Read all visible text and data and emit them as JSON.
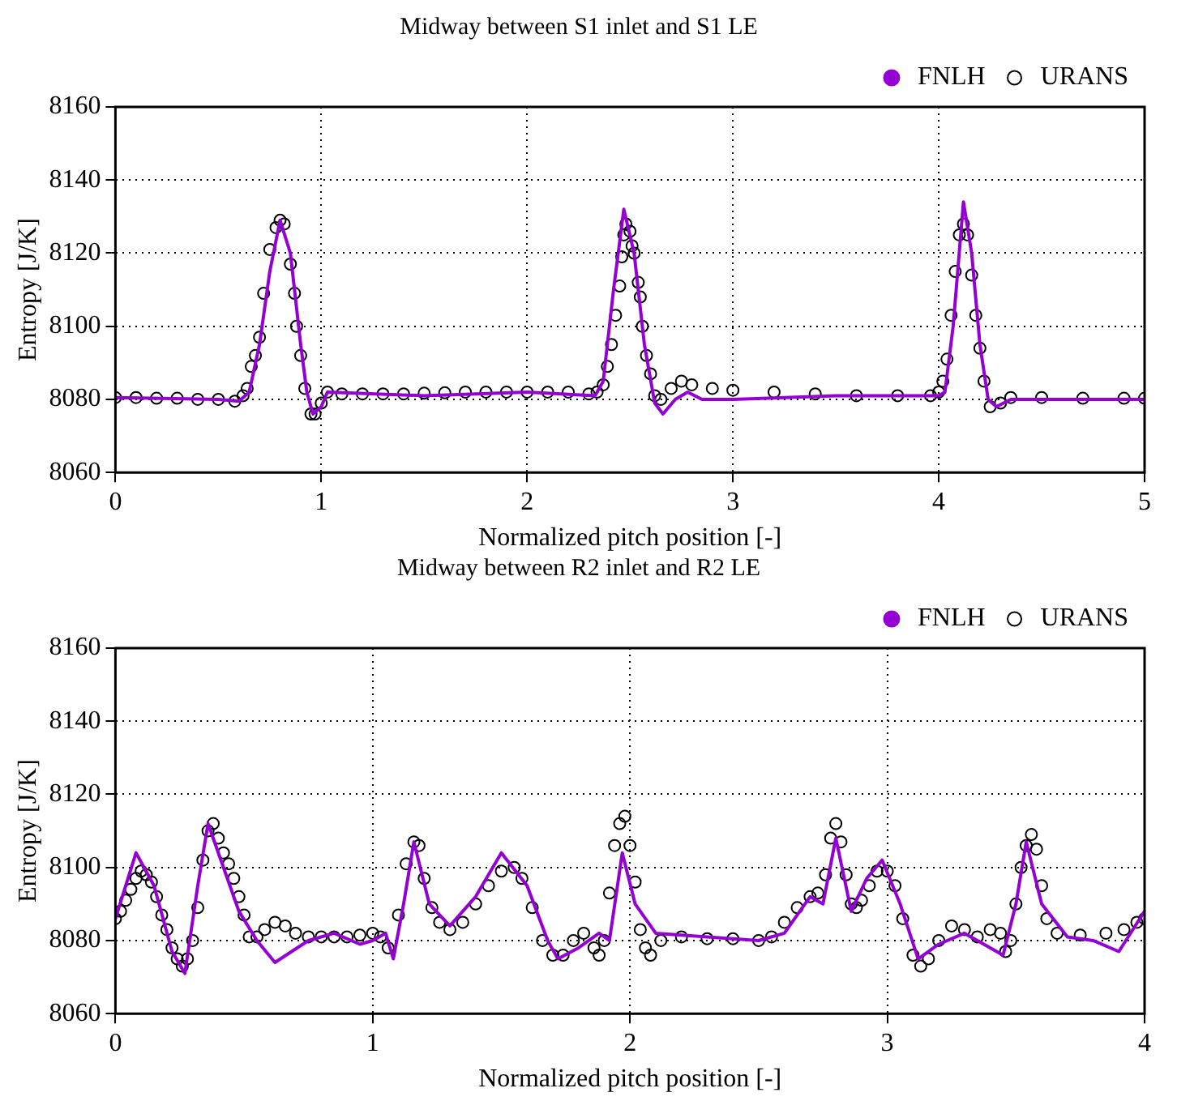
{
  "chart_data": [
    {
      "type": "line",
      "title": "Midway between S1 inlet and S1 LE",
      "xlabel": "Normalized pitch position [-]",
      "ylabel": "Entropy [J/K]",
      "xlim": [
        0,
        5
      ],
      "xticks": [
        0,
        1,
        2,
        3,
        4,
        5
      ],
      "ylim": [
        8060,
        8160
      ],
      "yticks": [
        8060,
        8080,
        8100,
        8120,
        8140,
        8160
      ],
      "grid": true,
      "legend": "top right",
      "series": [
        {
          "name": "FNLH",
          "color": "#9400d3",
          "type": "line",
          "marker": "none",
          "x": [
            0,
            0.5,
            0.6,
            0.65,
            0.7,
            0.75,
            0.8,
            0.85,
            0.9,
            0.93,
            0.96,
            1.0,
            1.03,
            1.5,
            2.0,
            2.33,
            2.37,
            2.42,
            2.47,
            2.52,
            2.57,
            2.62,
            2.66,
            2.72,
            2.78,
            2.85,
            3.0,
            3.5,
            4.0,
            4.03,
            4.07,
            4.12,
            4.16,
            4.2,
            4.24,
            4.28,
            4.35,
            5.0
          ],
          "values": [
            8080.5,
            8080,
            8079.5,
            8082,
            8095,
            8115,
            8129,
            8120,
            8095,
            8082,
            8076,
            8078,
            8082,
            8081,
            8082,
            8081,
            8085,
            8110,
            8132,
            8120,
            8095,
            8079,
            8076,
            8080,
            8082,
            8080,
            8080,
            8081,
            8081,
            8082,
            8100,
            8134,
            8120,
            8095,
            8080,
            8078,
            8080,
            8080
          ]
        },
        {
          "name": "URANS",
          "color": "#000000",
          "type": "scatter",
          "marker": "circle",
          "x": [
            0,
            0.1,
            0.2,
            0.3,
            0.4,
            0.5,
            0.58,
            0.62,
            0.64,
            0.66,
            0.68,
            0.7,
            0.72,
            0.75,
            0.78,
            0.8,
            0.82,
            0.85,
            0.87,
            0.88,
            0.9,
            0.92,
            0.95,
            0.97,
            1.0,
            1.03,
            1.1,
            1.2,
            1.3,
            1.4,
            1.5,
            1.6,
            1.7,
            1.8,
            1.9,
            2.0,
            2.1,
            2.2,
            2.3,
            2.34,
            2.37,
            2.39,
            2.41,
            2.43,
            2.45,
            2.46,
            2.47,
            2.48,
            2.5,
            2.51,
            2.52,
            2.54,
            2.55,
            2.56,
            2.58,
            2.6,
            2.62,
            2.65,
            2.7,
            2.75,
            2.8,
            2.9,
            3.0,
            3.2,
            3.4,
            3.6,
            3.8,
            3.96,
            4.0,
            4.02,
            4.04,
            4.06,
            4.08,
            4.1,
            4.12,
            4.14,
            4.16,
            4.18,
            4.2,
            4.22,
            4.25,
            4.3,
            4.35,
            4.5,
            4.7,
            4.9,
            5.0
          ],
          "values": [
            8080.5,
            8080.5,
            8080.3,
            8080.3,
            8080,
            8080,
            8079.5,
            8081,
            8083,
            8089,
            8092,
            8097,
            8109,
            8121,
            8127,
            8129,
            8128,
            8117,
            8109,
            8100,
            8092,
            8083,
            8076,
            8076,
            8079,
            8082,
            8081.5,
            8081.5,
            8081.5,
            8081.5,
            8081.7,
            8081.8,
            8082,
            8082,
            8082,
            8082,
            8082,
            8082,
            8081.5,
            8082,
            8084,
            8089,
            8095,
            8103,
            8111,
            8119,
            8125,
            8128,
            8126,
            8122,
            8120,
            8112,
            8108,
            8100,
            8092,
            8087,
            8081,
            8080,
            8083,
            8085,
            8084,
            8083,
            8082.5,
            8082,
            8081.5,
            8081,
            8081,
            8081,
            8082,
            8085,
            8091,
            8103,
            8115,
            8125,
            8128,
            8125,
            8114,
            8103,
            8094,
            8085,
            8078,
            8079,
            8080.5,
            8080.5,
            8080.3,
            8080.3,
            8080.3
          ]
        }
      ]
    },
    {
      "type": "line",
      "title": "Midway between R2 inlet and R2 LE",
      "xlabel": "Normalized pitch position [-]",
      "ylabel": "Entropy [J/K]",
      "xlim": [
        0,
        4
      ],
      "xticks": [
        0,
        1,
        2,
        3,
        4
      ],
      "ylim": [
        8060,
        8160
      ],
      "yticks": [
        8060,
        8080,
        8100,
        8120,
        8140,
        8160
      ],
      "grid": true,
      "legend": "top right",
      "series": [
        {
          "name": "FNLH",
          "color": "#9400d3",
          "type": "line",
          "marker": "none",
          "x": [
            0,
            0.08,
            0.15,
            0.22,
            0.27,
            0.32,
            0.36,
            0.42,
            0.48,
            0.55,
            0.62,
            0.75,
            0.85,
            0.95,
            1.0,
            1.05,
            1.08,
            1.12,
            1.16,
            1.22,
            1.3,
            1.4,
            1.5,
            1.6,
            1.68,
            1.72,
            1.8,
            1.88,
            1.92,
            1.97,
            2.02,
            2.1,
            2.3,
            2.5,
            2.6,
            2.7,
            2.75,
            2.8,
            2.86,
            2.92,
            2.98,
            3.05,
            3.12,
            3.2,
            3.3,
            3.45,
            3.5,
            3.54,
            3.6,
            3.7,
            3.8,
            3.9,
            4.0
          ],
          "values": [
            8086,
            8104,
            8095,
            8077,
            8071,
            8095,
            8112,
            8100,
            8088,
            8080,
            8074,
            8080,
            8082,
            8079,
            8080,
            8082,
            8075,
            8090,
            8107,
            8090,
            8084,
            8092,
            8104,
            8095,
            8080,
            8075,
            8078,
            8082,
            8080,
            8104,
            8090,
            8082,
            8081,
            8080,
            8082,
            8092,
            8090,
            8108,
            8088,
            8097,
            8102,
            8090,
            8075,
            8079,
            8082,
            8076,
            8090,
            8107,
            8090,
            8081,
            8080,
            8077,
            8088
          ]
        },
        {
          "name": "URANS",
          "color": "#000000",
          "type": "scatter",
          "marker": "circle",
          "x": [
            0,
            0.02,
            0.04,
            0.06,
            0.08,
            0.1,
            0.12,
            0.14,
            0.16,
            0.18,
            0.2,
            0.22,
            0.24,
            0.26,
            0.28,
            0.3,
            0.32,
            0.34,
            0.36,
            0.38,
            0.4,
            0.42,
            0.44,
            0.46,
            0.48,
            0.5,
            0.52,
            0.55,
            0.58,
            0.62,
            0.66,
            0.7,
            0.75,
            0.8,
            0.85,
            0.9,
            0.95,
            1.0,
            1.03,
            1.06,
            1.1,
            1.13,
            1.16,
            1.18,
            1.2,
            1.23,
            1.26,
            1.3,
            1.35,
            1.4,
            1.45,
            1.5,
            1.55,
            1.58,
            1.62,
            1.66,
            1.7,
            1.74,
            1.78,
            1.82,
            1.86,
            1.88,
            1.9,
            1.92,
            1.94,
            1.96,
            1.98,
            2.0,
            2.02,
            2.04,
            2.06,
            2.08,
            2.12,
            2.2,
            2.3,
            2.4,
            2.5,
            2.55,
            2.6,
            2.65,
            2.7,
            2.73,
            2.76,
            2.78,
            2.8,
            2.82,
            2.84,
            2.86,
            2.88,
            2.9,
            2.93,
            2.96,
            3.0,
            3.03,
            3.06,
            3.1,
            3.13,
            3.16,
            3.2,
            3.25,
            3.3,
            3.35,
            3.4,
            3.44,
            3.46,
            3.48,
            3.5,
            3.52,
            3.54,
            3.56,
            3.58,
            3.6,
            3.62,
            3.66,
            3.75,
            3.85,
            3.92,
            3.97,
            4.0
          ],
          "values": [
            8086,
            8088,
            8091,
            8094,
            8097,
            8099,
            8098,
            8096,
            8092,
            8087,
            8083,
            8078,
            8075,
            8073,
            8075,
            8080,
            8089,
            8102,
            8110,
            8112,
            8108,
            8104,
            8101,
            8097,
            8092,
            8087,
            8081,
            8081,
            8083,
            8085,
            8084,
            8082,
            8081,
            8081,
            8081,
            8081,
            8081.5,
            8082,
            8081,
            8078,
            8087,
            8101,
            8107,
            8106,
            8097,
            8089,
            8085,
            8083,
            8085,
            8090,
            8095,
            8099,
            8100,
            8097,
            8089,
            8080,
            8076,
            8076,
            8080,
            8082,
            8078,
            8076,
            8080,
            8093,
            8106,
            8112,
            8114,
            8106,
            8096,
            8083,
            8078,
            8076,
            8080,
            8081,
            8080.5,
            8080.5,
            8080,
            8081,
            8085,
            8089,
            8092,
            8093,
            8098,
            8108,
            8112,
            8107,
            8098,
            8090,
            8089,
            8091,
            8095,
            8099,
            8099,
            8095,
            8086,
            8076,
            8073,
            8075,
            8080,
            8084,
            8083,
            8081,
            8083,
            8082,
            8077,
            8080,
            8090,
            8100,
            8106,
            8109,
            8105,
            8095,
            8086,
            8082,
            8081.5,
            8082,
            8083,
            8085,
            8086
          ]
        }
      ]
    }
  ]
}
